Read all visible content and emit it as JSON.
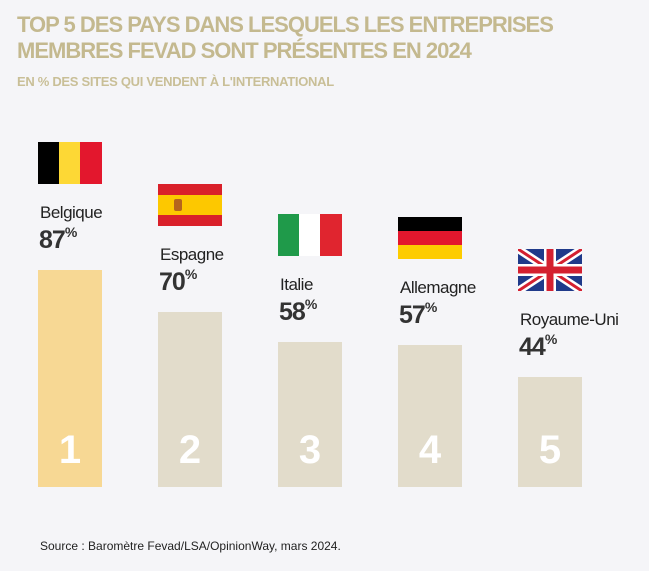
{
  "chart_data": {
    "type": "bar",
    "title": "TOP 5 DES PAYS DANS LESQUELS LES ENTREPRISES MEMBRES FEVAD SONT PRÉSENTES EN 2024",
    "subtitle": "EN % DES SITES QUI VENDENT À L'INTERNATIONAL",
    "categories": [
      "Belgique",
      "Espagne",
      "Italie",
      "Allemagne",
      "Royaume-Uni"
    ],
    "values": [
      87,
      70,
      58,
      57,
      44
    ],
    "ranks": [
      "1",
      "2",
      "3",
      "4",
      "5"
    ],
    "unit": "%",
    "flags": [
      "belgium-flag",
      "spain-flag",
      "italy-flag",
      "germany-flag",
      "uk-flag"
    ],
    "colors": {
      "title": "#c4b98f",
      "highlight_bar": "#f7d894",
      "bar": "#e2dccb",
      "background": "#f5f5f8"
    },
    "source": "Source : Baromètre Fevad/LSA/OpinionWay, mars 2024."
  }
}
